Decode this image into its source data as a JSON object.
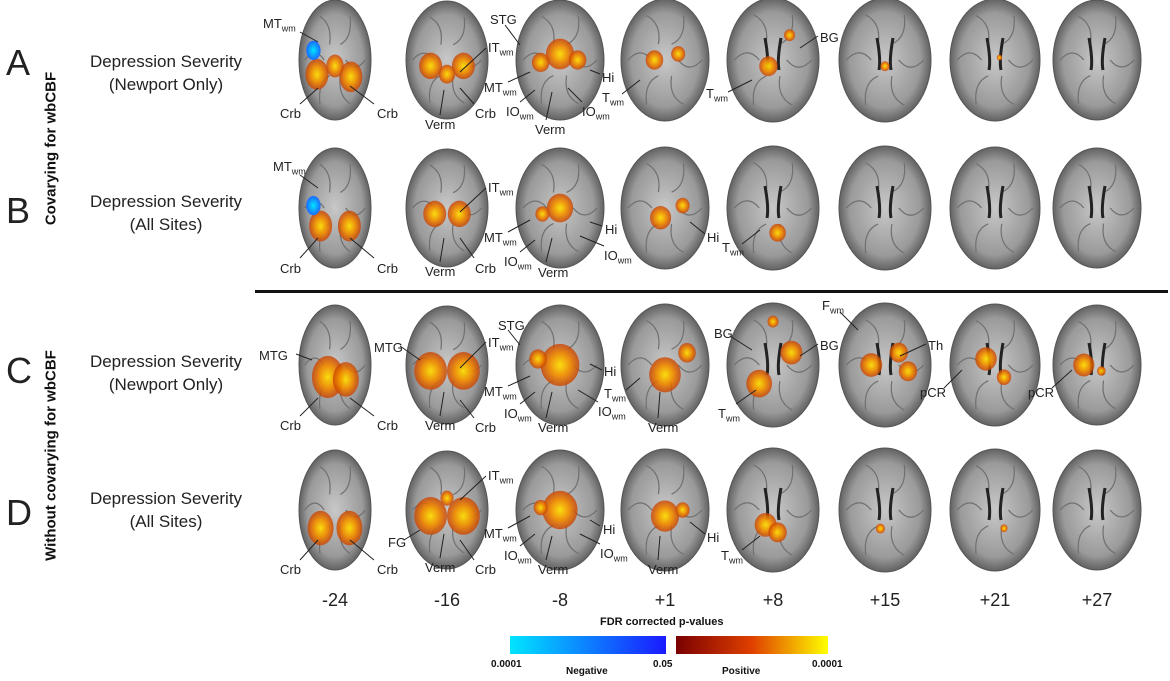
{
  "side_labels": {
    "covarying": "Covarying for wbCBF",
    "without": "Without covarying for wbCBF"
  },
  "rows": [
    {
      "letter": "A",
      "line1": "Depression Severity",
      "line2": "(Newport Only)"
    },
    {
      "letter": "B",
      "line1": "Depression Severity",
      "line2": "(All Sites)"
    },
    {
      "letter": "C",
      "line1": "Depression Severity",
      "line2": "(Newport Only)"
    },
    {
      "letter": "D",
      "line1": "Depression Severity",
      "line2": "(All Sites)"
    }
  ],
  "slices": [
    "-24",
    "-16",
    "-8",
    "+1",
    "+8",
    "+15",
    "+21",
    "+27"
  ],
  "colorbar": {
    "title": "FDR corrected  p-values",
    "neg_low": "0.0001",
    "neg_label": "Negative",
    "mid": "0.05",
    "pos_label": "Positive",
    "pos_high": "0.0001",
    "negative_colors": [
      "#00e5ff",
      "#1a1aff"
    ],
    "positive_colors": [
      "#7a0000",
      "#e04000",
      "#ffff00"
    ]
  },
  "labels": {
    "Crb": "Crb",
    "Verm": "Verm",
    "MT": "MT",
    "IT": "IT",
    "IO": "IO",
    "T": "T",
    "F": "F",
    "wm": "wm",
    "STG": "STG",
    "Hi": "Hi",
    "BG": "BG",
    "MTG": "MTG",
    "Th": "Th",
    "pCR": "pCR",
    "FG": "FG"
  }
}
